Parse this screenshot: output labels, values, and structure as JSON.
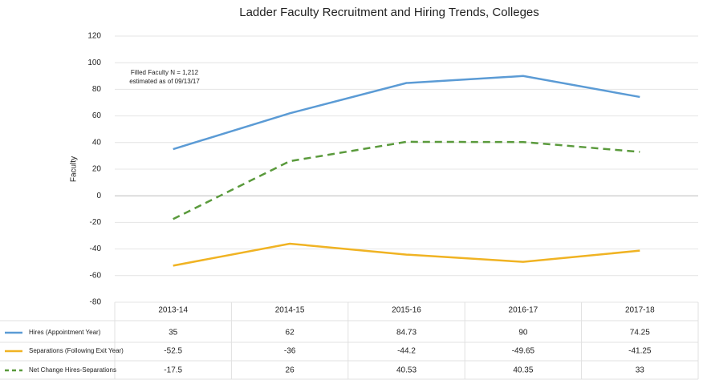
{
  "chart_data": {
    "type": "line",
    "title": "Ladder Faculty Recruitment and Hiring Trends, Colleges",
    "ylabel": "Faculty",
    "annotation": [
      "Filled Faculty N = 1,212",
      "estimated as of 09/13/17"
    ],
    "categories": [
      "2013-14",
      "2014-15",
      "2015-16",
      "2016-17",
      "2017-18"
    ],
    "series": [
      {
        "name": "Hires (Appointment Year)",
        "color": "#5b9bd5",
        "dashed": false,
        "values": [
          35,
          62,
          84.73,
          90,
          74.25
        ]
      },
      {
        "name": "Separations (Following Exit  Year)",
        "color": "#f0b323",
        "dashed": false,
        "values": [
          -52.5,
          -36,
          -44.2,
          -49.65,
          -41.25
        ]
      },
      {
        "name": "Net Change Hires-Separations",
        "color": "#5a9a3c",
        "dashed": true,
        "values": [
          -17.5,
          26,
          40.53,
          40.35,
          33
        ]
      }
    ],
    "ylim": [
      -80,
      120
    ],
    "yticks": [
      -80,
      -60,
      -40,
      -20,
      0,
      20,
      40,
      60,
      80,
      100,
      120
    ],
    "grid": true
  }
}
